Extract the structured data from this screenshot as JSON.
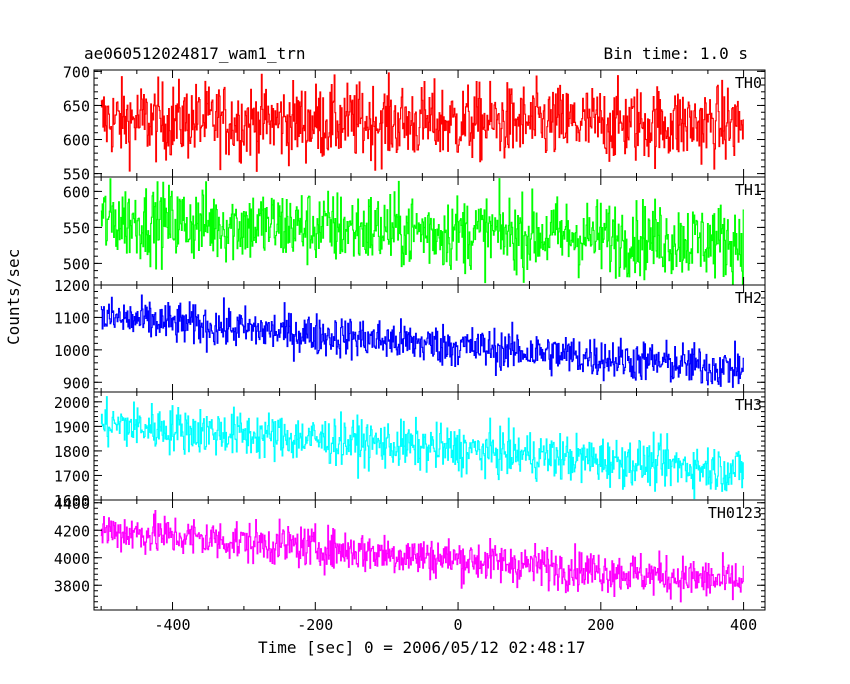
{
  "header": {
    "title": "ae060512024817_wam1_trn",
    "bin_time": "Bin time: 1.0 s"
  },
  "chart_data": {
    "type": "line",
    "ylabel": "Counts/sec",
    "xlabel": "Time [sec] 0 = 2006/05/12 02:48:17",
    "xlim": [
      -510,
      430
    ],
    "x_ticks": [
      -400,
      -200,
      0,
      200,
      400
    ],
    "x_range": [
      -500,
      400
    ],
    "bin_time": 1.0,
    "panels": [
      {
        "name": "TH0",
        "color": "#ff0000",
        "ylim": [
          545,
          702
        ],
        "y_ticks": [
          550,
          600,
          650,
          700
        ],
        "trend_start": 628,
        "trend_end": 622,
        "noise": 28
      },
      {
        "name": "TH1",
        "color": "#00ff00",
        "ylim": [
          470,
          620
        ],
        "y_ticks": [
          500,
          550,
          600
        ],
        "trend_start": 560,
        "trend_end": 530,
        "noise": 26
      },
      {
        "name": "TH2",
        "color": "#0000ff",
        "ylim": [
          870,
          1200
        ],
        "y_ticks": [
          900,
          1000,
          1100,
          1200
        ],
        "trend_start": 1100,
        "trend_end": 940,
        "noise": 32
      },
      {
        "name": "TH3",
        "color": "#00ffff",
        "ylim": [
          1600,
          2040
        ],
        "y_ticks": [
          1600,
          1700,
          1800,
          1900,
          2000
        ],
        "trend_start": 1910,
        "trend_end": 1720,
        "noise": 48
      },
      {
        "name": "TH0123",
        "color": "#ff00ff",
        "ylim": [
          3620,
          4420
        ],
        "y_ticks": [
          3800,
          4000,
          4200,
          4400
        ],
        "trend_start": 4200,
        "trend_end": 3820,
        "noise": 75
      }
    ]
  }
}
